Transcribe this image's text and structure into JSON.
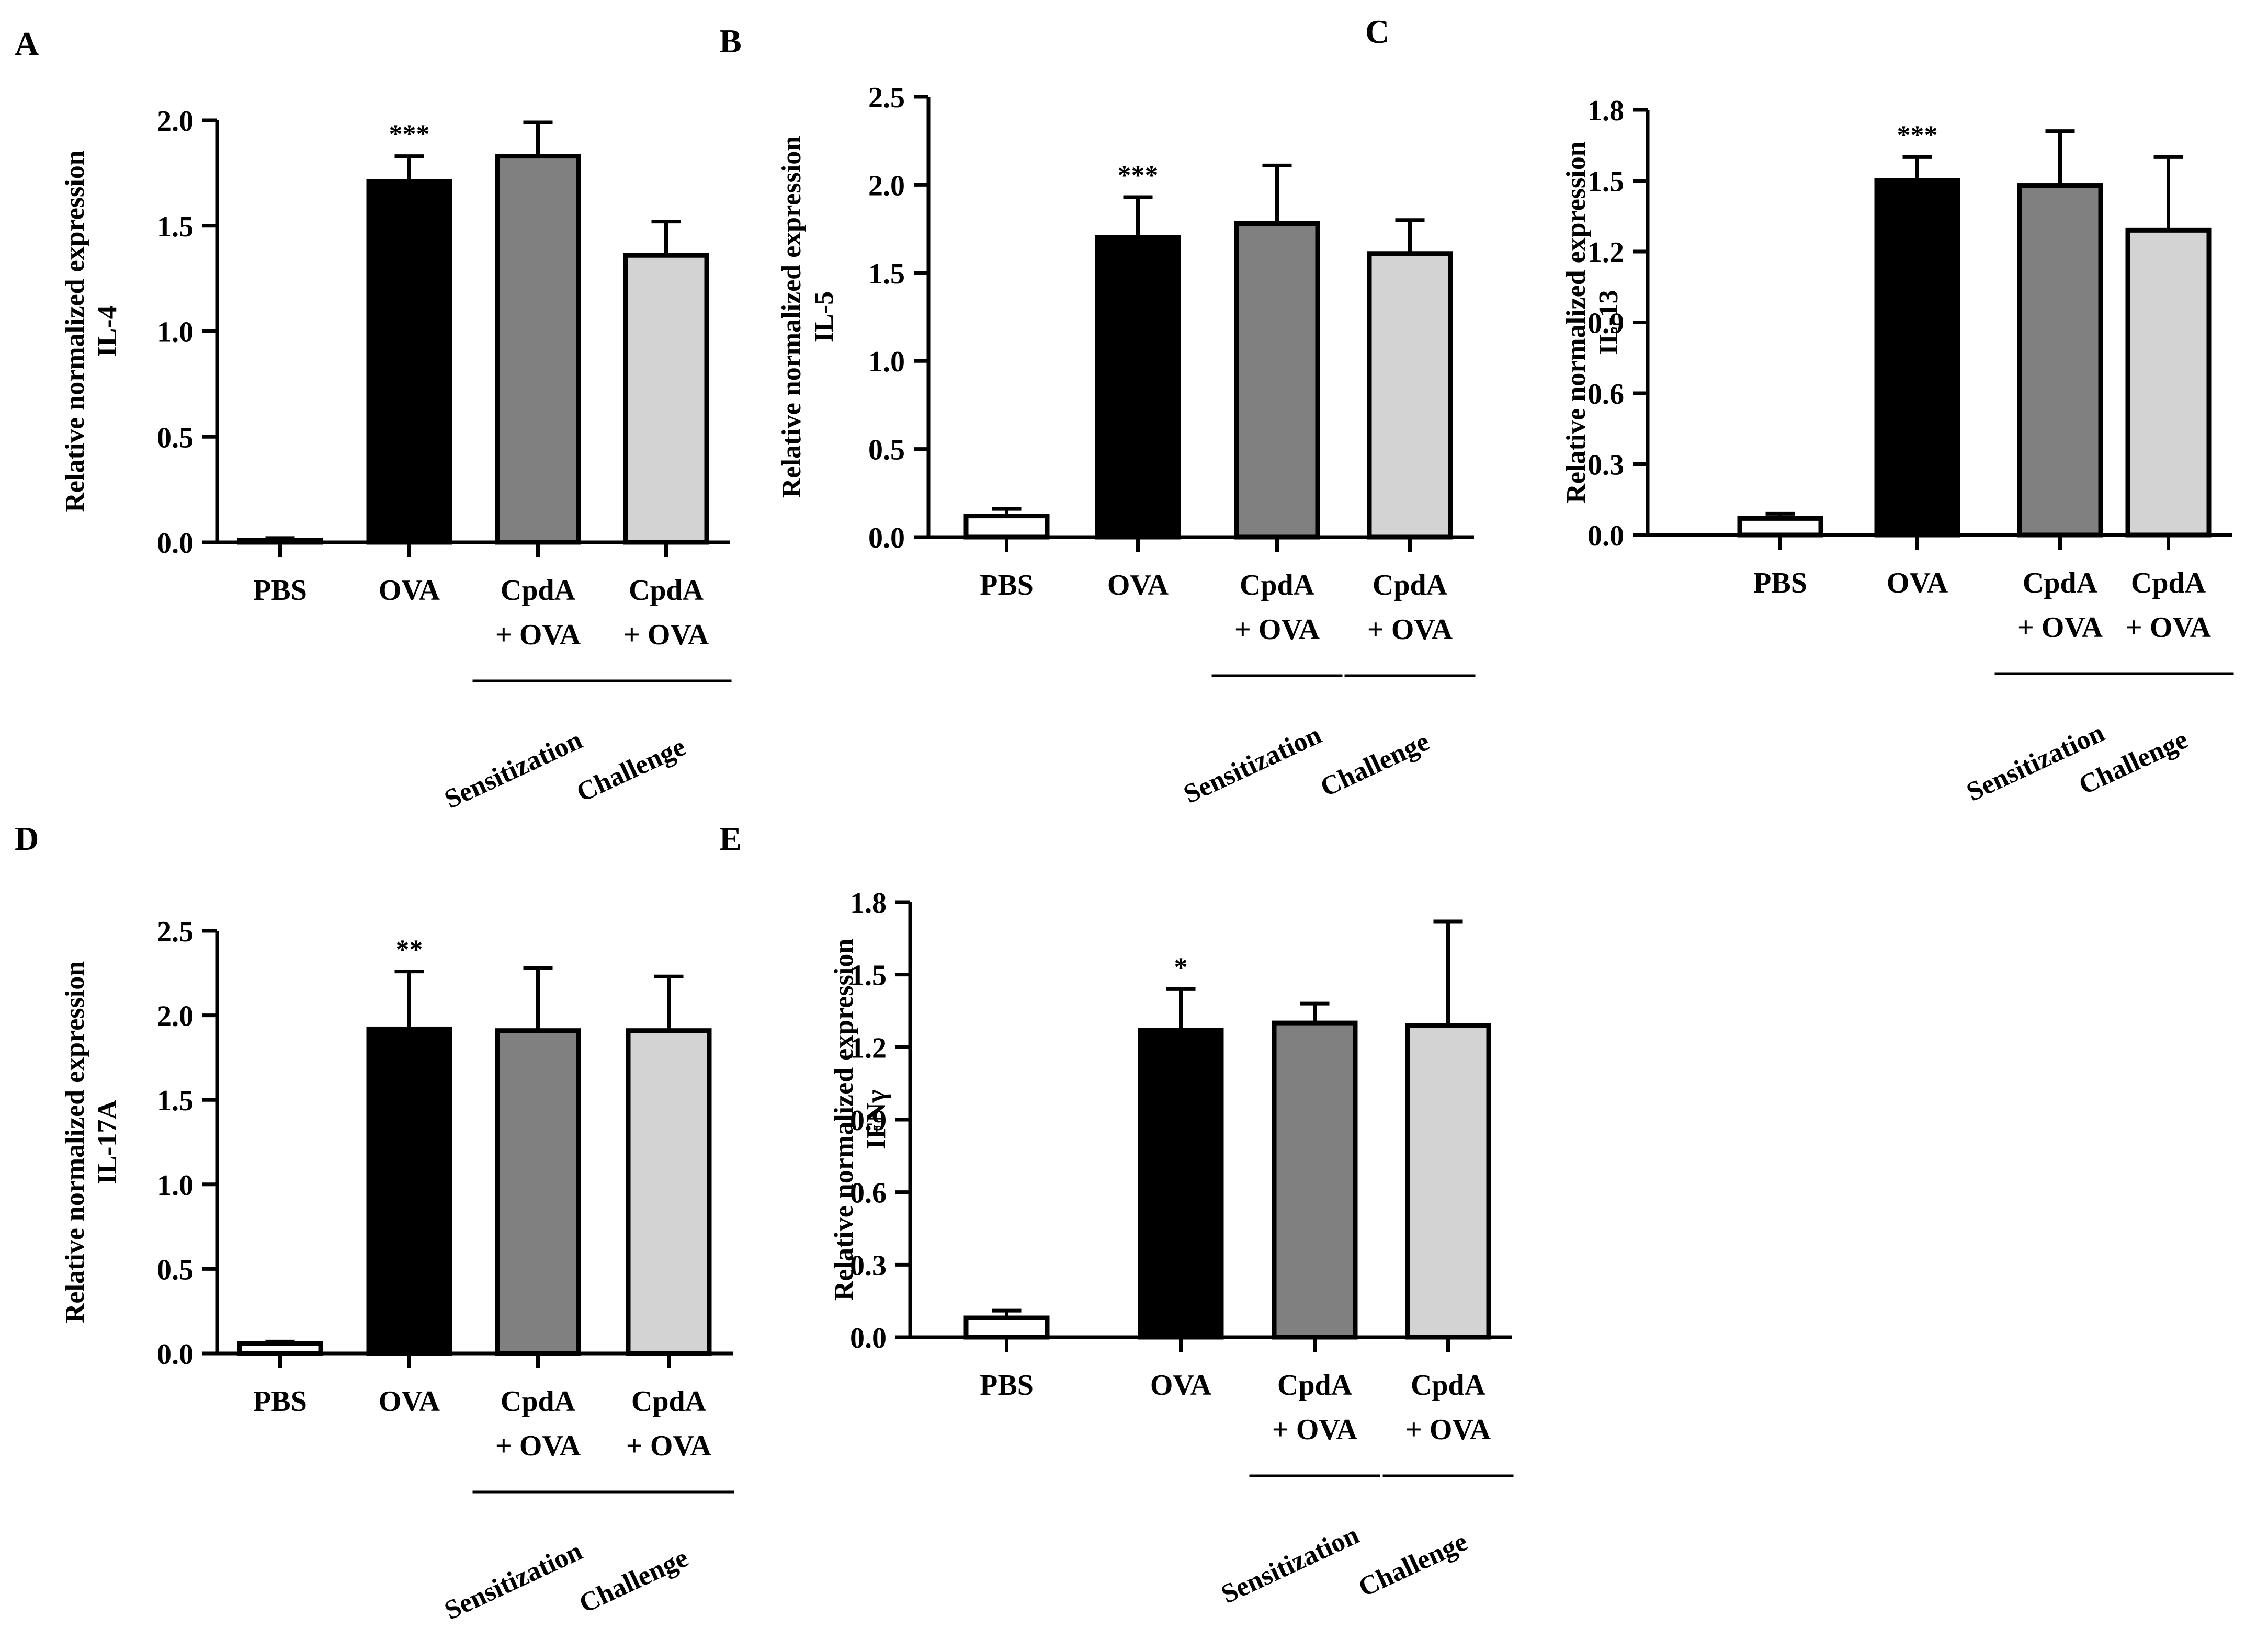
{
  "figure": {
    "colors": {
      "pbs": "#ffffff",
      "ova": "#000000",
      "sens": "#808080",
      "chal": "#d3d3d3",
      "stroke": "#000000"
    },
    "groups": [
      "Sensitization",
      "Challenge"
    ]
  },
  "chart_data": [
    {
      "panel": "A",
      "type": "bar",
      "ylabel": [
        "Relative normalized expression",
        "IL-4"
      ],
      "categories": [
        [
          "PBS"
        ],
        [
          "OVA"
        ],
        [
          "CpdA",
          "+ OVA"
        ],
        [
          "CpdA",
          "+ OVA"
        ]
      ],
      "values": [
        0.01,
        1.71,
        1.83,
        1.36
      ],
      "errors": [
        0.01,
        0.12,
        0.16,
        0.16
      ],
      "significance": [
        "",
        "***",
        "",
        ""
      ],
      "ylim": [
        0,
        2.0
      ],
      "yticks": [
        0.0,
        0.5,
        1.0,
        1.5,
        2.0
      ],
      "ytick_labels": [
        "0.0",
        "0.5",
        "1.0",
        "1.5",
        "2.0"
      ]
    },
    {
      "panel": "B",
      "type": "bar",
      "ylabel": [
        "Relative normalized expression",
        "IL-5"
      ],
      "categories": [
        [
          "PBS"
        ],
        [
          "OVA"
        ],
        [
          "CpdA",
          "+ OVA"
        ],
        [
          "CpdA",
          "+ OVA"
        ]
      ],
      "values": [
        0.12,
        1.7,
        1.78,
        1.61
      ],
      "errors": [
        0.04,
        0.23,
        0.33,
        0.19
      ],
      "significance": [
        "",
        "***",
        "",
        ""
      ],
      "ylim": [
        0,
        2.5
      ],
      "yticks": [
        0.0,
        0.5,
        1.0,
        1.5,
        2.0,
        2.5
      ],
      "ytick_labels": [
        "0.0",
        "0.5",
        "1.0",
        "1.5",
        "2.0",
        "2.5"
      ]
    },
    {
      "panel": "C",
      "type": "bar",
      "ylabel": [
        "Relative normalized expression",
        "IL-13"
      ],
      "categories": [
        [
          "PBS"
        ],
        [
          "OVA"
        ],
        [
          "CpdA",
          "+ OVA"
        ],
        [
          "CpdA",
          "+ OVA"
        ]
      ],
      "values": [
        0.07,
        1.5,
        1.48,
        1.29
      ],
      "errors": [
        0.02,
        0.1,
        0.23,
        0.31
      ],
      "significance": [
        "",
        "***",
        "",
        ""
      ],
      "ylim": [
        0,
        1.8
      ],
      "yticks": [
        0.0,
        0.3,
        0.6,
        0.9,
        1.2,
        1.5,
        1.8
      ],
      "ytick_labels": [
        "0.0",
        "0.3",
        "0.6",
        "0.9",
        "1.2",
        "1.5",
        "1.8"
      ]
    },
    {
      "panel": "D",
      "type": "bar",
      "ylabel": [
        "Relative normalized expression",
        "IL-17A"
      ],
      "categories": [
        [
          "PBS"
        ],
        [
          "OVA"
        ],
        [
          "CpdA",
          "+ OVA"
        ],
        [
          "CpdA",
          "+ OVA"
        ]
      ],
      "values": [
        0.06,
        1.92,
        1.91,
        1.91
      ],
      "errors": [
        0.01,
        0.34,
        0.37,
        0.32
      ],
      "significance": [
        "",
        "**",
        "",
        ""
      ],
      "ylim": [
        0,
        2.5
      ],
      "yticks": [
        0.0,
        0.5,
        1.0,
        1.5,
        2.0,
        2.5
      ],
      "ytick_labels": [
        "0.0",
        "0.5",
        "1.0",
        "1.5",
        "2.0",
        "2.5"
      ]
    },
    {
      "panel": "E",
      "type": "bar",
      "ylabel": [
        "Relative normalized expression",
        "IFNγ"
      ],
      "categories": [
        [
          "PBS"
        ],
        [
          "OVA"
        ],
        [
          "CpdA",
          "+ OVA"
        ],
        [
          "CpdA",
          "+ OVA"
        ]
      ],
      "values": [
        0.08,
        1.27,
        1.3,
        1.29
      ],
      "errors": [
        0.03,
        0.17,
        0.08,
        0.43
      ],
      "significance": [
        "",
        "*",
        "",
        ""
      ],
      "ylim": [
        0,
        1.8
      ],
      "yticks": [
        0.0,
        0.3,
        0.6,
        0.9,
        1.2,
        1.5,
        1.8
      ],
      "ytick_labels": [
        "0.0",
        "0.3",
        "0.6",
        "0.9",
        "1.2",
        "1.5",
        "1.8"
      ]
    }
  ]
}
